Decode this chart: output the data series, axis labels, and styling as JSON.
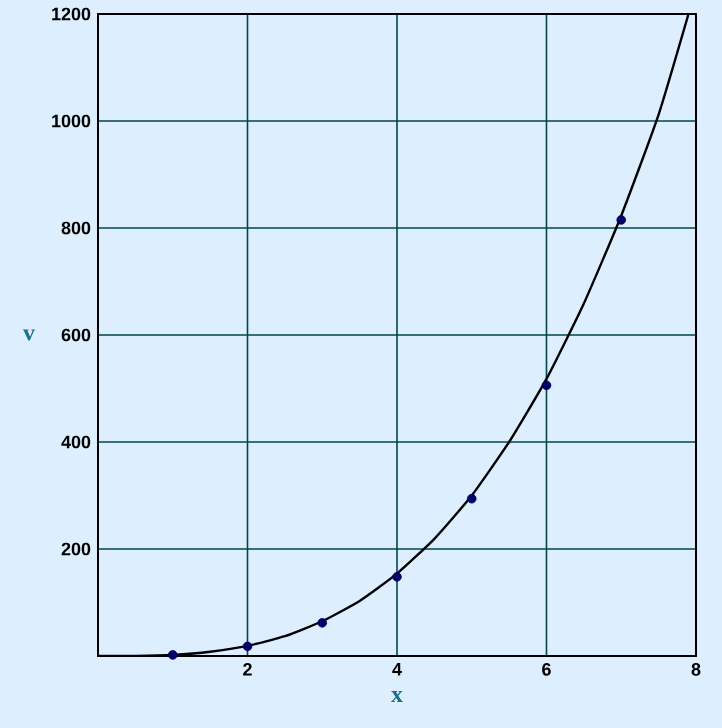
{
  "chart_data": {
    "type": "scatter",
    "xlabel": "x",
    "ylabel": "v",
    "xlim": [
      0,
      8
    ],
    "ylim": [
      0,
      1200
    ],
    "xticks": [
      {
        "value": 0,
        "label": null
      },
      2,
      4,
      6,
      8
    ],
    "yticks": [
      {
        "value": 0,
        "label": null
      },
      200,
      400,
      600,
      800,
      1000,
      1200
    ],
    "grid": true,
    "marker": "circle",
    "series": [
      {
        "color": "#000066",
        "x": [
          1,
          2,
          3,
          4,
          5,
          6,
          7
        ],
        "values": [
          2,
          18,
          62,
          148,
          294,
          506,
          815
        ]
      },
      {
        "type": "line",
        "color": "#000000",
        "line_style": "solid",
        "marker": "none",
        "x": [
          0,
          0.5,
          1,
          1.5,
          2,
          2.5,
          3,
          3.5,
          4,
          4.5,
          5,
          5.5,
          6,
          6.5,
          7,
          7.5,
          7.9
        ],
        "values": [
          0,
          0,
          2,
          8,
          19,
          37,
          65,
          103,
          154,
          219,
          300,
          400,
          518,
          659,
          823,
          1012,
          1200
        ]
      }
    ]
  }
}
